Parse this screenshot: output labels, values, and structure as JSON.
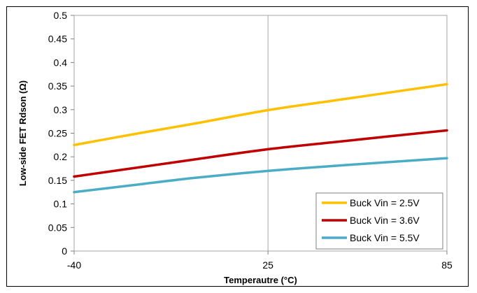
{
  "chart_data": {
    "type": "line",
    "title": "",
    "xlabel": "Temperautre (°C)",
    "ylabel": "Low-side FET Rdson (Ω)",
    "x_ticks": [
      "-40",
      "25",
      "85"
    ],
    "x_tick_values": [
      -40,
      25,
      85
    ],
    "y_ticks": [
      "0",
      "0.05",
      "0.1",
      "0.15",
      "0.2",
      "0.25",
      "0.3",
      "0.35",
      "0.4",
      "0.45",
      "0.5"
    ],
    "xlim": [
      -40,
      85
    ],
    "ylim": [
      0,
      0.5
    ],
    "grid": {
      "vertical": true,
      "horizontal": false
    },
    "legend_position": "bottom-right",
    "series": [
      {
        "name": "Buck Vin = 2.5V",
        "color": "#FFC000",
        "x": [
          -40,
          -20,
          0,
          25,
          50,
          85
        ],
        "y": [
          0.225,
          0.248,
          0.27,
          0.299,
          0.322,
          0.354
        ]
      },
      {
        "name": "Buck Vin = 3.6V",
        "color": "#C00000",
        "x": [
          -40,
          -20,
          0,
          25,
          50,
          85
        ],
        "y": [
          0.158,
          0.176,
          0.194,
          0.216,
          0.233,
          0.256
        ]
      },
      {
        "name": "Buck Vin = 5.5V",
        "color": "#4BACC6",
        "x": [
          -40,
          -20,
          0,
          25,
          50,
          85
        ],
        "y": [
          0.125,
          0.14,
          0.155,
          0.17,
          0.182,
          0.197
        ]
      }
    ]
  }
}
